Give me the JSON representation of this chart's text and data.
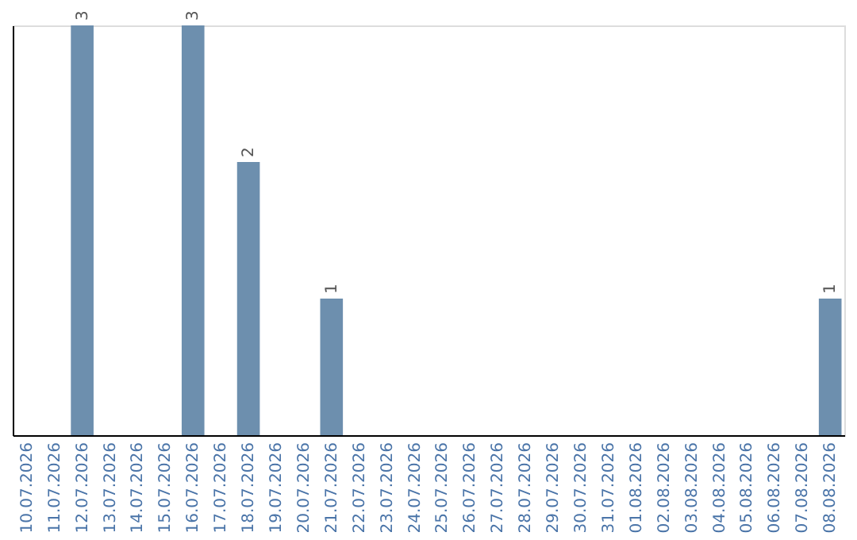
{
  "chart_data": {
    "type": "bar",
    "categories": [
      "10.07.2026",
      "11.07.2026",
      "12.07.2026",
      "13.07.2026",
      "14.07.2026",
      "15.07.2026",
      "16.07.2026",
      "17.07.2026",
      "18.07.2026",
      "19.07.2026",
      "20.07.2026",
      "21.07.2026",
      "22.07.2026",
      "23.07.2026",
      "24.07.2026",
      "25.07.2026",
      "26.07.2026",
      "27.07.2026",
      "28.07.2026",
      "29.07.2026",
      "30.07.2026",
      "31.07.2026",
      "01.08.2026",
      "02.08.2026",
      "03.08.2026",
      "04.08.2026",
      "05.08.2026",
      "06.08.2026",
      "07.08.2026",
      "08.08.2026"
    ],
    "values": [
      0,
      0,
      3,
      0,
      0,
      0,
      3,
      0,
      2,
      0,
      0,
      1,
      0,
      0,
      0,
      0,
      0,
      0,
      0,
      0,
      0,
      0,
      0,
      0,
      0,
      0,
      0,
      0,
      0,
      1
    ],
    "value_labels": [
      null,
      null,
      "3",
      null,
      null,
      null,
      "3",
      null,
      "2",
      null,
      null,
      "1",
      null,
      null,
      null,
      null,
      null,
      null,
      null,
      null,
      null,
      null,
      null,
      null,
      null,
      null,
      null,
      null,
      null,
      "1"
    ],
    "color": "#6d8fae",
    "ylim": [
      0,
      3
    ],
    "tick_labels": "x",
    "grid": false
  }
}
